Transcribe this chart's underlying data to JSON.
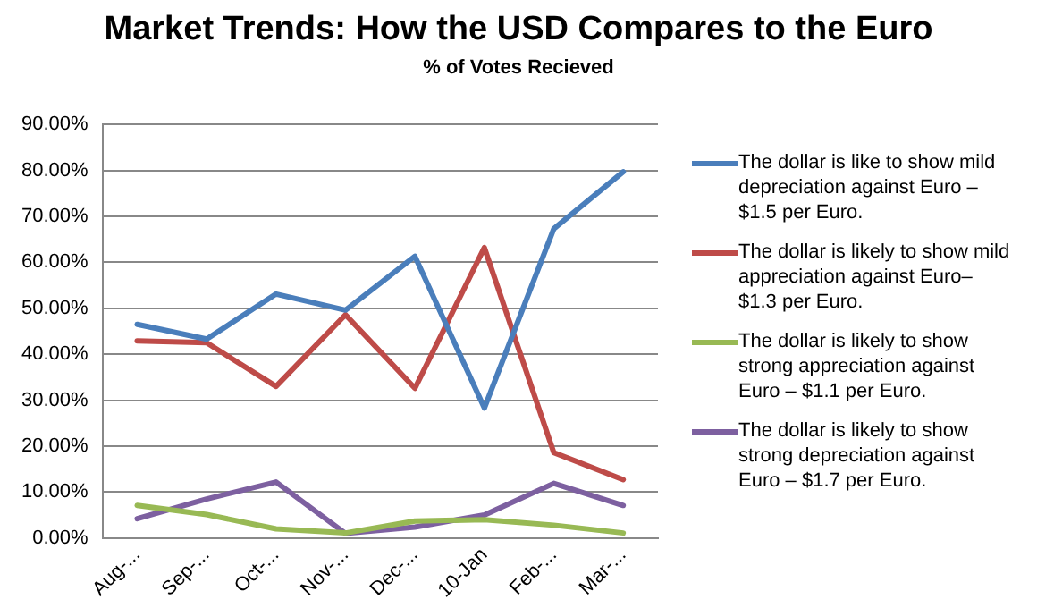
{
  "chart_data": {
    "type": "line",
    "title": "Market Trends: How the USD Compares to the Euro",
    "subtitle": "% of Votes Recieved",
    "categories": [
      "Aug-...",
      "Sep-...",
      "Oct-...",
      "Nov-...",
      "Dec-...",
      "10-Jan",
      "Feb-...",
      "Mar-..."
    ],
    "series": [
      {
        "name": "The dollar is like to show mild depreciation against Euro –$1.5 per Euro.",
        "color": "#4a7ebb",
        "values": [
          46.5,
          43.3,
          53.1,
          49.6,
          61.3,
          28.3,
          67.3,
          79.7
        ]
      },
      {
        "name": "The dollar is likely to show mild appreciation against Euro– $1.3 per Euro.",
        "color": "#be4b48",
        "values": [
          42.9,
          42.5,
          33.0,
          48.6,
          32.6,
          63.2,
          18.6,
          12.7
        ]
      },
      {
        "name": "The dollar is likely to show strong appreciation against Euro – $1.1 per Euro.",
        "color": "#98b954",
        "values": [
          7.1,
          5.1,
          2.0,
          1.1,
          3.7,
          4.0,
          2.8,
          1.1
        ]
      },
      {
        "name": "The dollar is likely to show strong depreciation against Euro – $1.7 per Euro.",
        "color": "#7d60a0",
        "values": [
          4.2,
          8.5,
          12.2,
          1.0,
          2.4,
          5.0,
          11.9,
          7.1
        ]
      }
    ],
    "ylim": [
      0,
      90
    ],
    "yticks": [
      {
        "value": 0,
        "label": "0.00%"
      },
      {
        "value": 10,
        "label": "10.00%"
      },
      {
        "value": 20,
        "label": "20.00%"
      },
      {
        "value": 30,
        "label": "30.00%"
      },
      {
        "value": 40,
        "label": "40.00%"
      },
      {
        "value": 50,
        "label": "50.00%"
      },
      {
        "value": 60,
        "label": "60.00%"
      },
      {
        "value": 70,
        "label": "70.00%"
      },
      {
        "value": 80,
        "label": "80.00%"
      },
      {
        "value": 90,
        "label": "90.00%"
      }
    ],
    "grid": "y",
    "legend": "right",
    "marker": "none",
    "line_style": "solid"
  }
}
